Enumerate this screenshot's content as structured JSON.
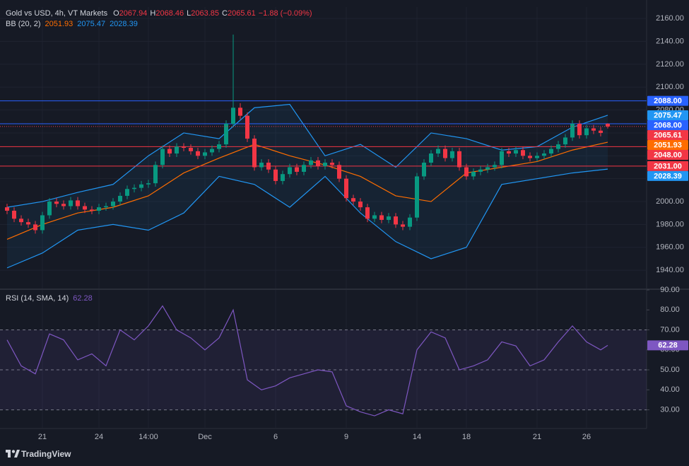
{
  "header": {
    "symbol": "Gold vs USD, 4h, VT Markets",
    "ohlc_keys": [
      "O",
      "H",
      "L",
      "C"
    ],
    "change": "−1.88 (−0.09%)"
  },
  "watermark": "TradingView",
  "chart_data": [
    {
      "type": "candlestick",
      "categories": [
        null,
        null,
        null,
        null,
        null,
        "21",
        null,
        null,
        null,
        null,
        null,
        null,
        null,
        "24",
        null,
        null,
        null,
        null,
        null,
        null,
        "14:00",
        null,
        null,
        null,
        null,
        null,
        null,
        null,
        "Dec",
        null,
        null,
        null,
        null,
        null,
        null,
        null,
        null,
        null,
        "6",
        null,
        null,
        null,
        null,
        null,
        null,
        null,
        null,
        null,
        "9",
        null,
        null,
        null,
        null,
        null,
        null,
        null,
        null,
        null,
        "14",
        null,
        null,
        null,
        null,
        null,
        null,
        "18",
        null,
        null,
        null,
        null,
        null,
        null,
        null,
        null,
        null,
        "21",
        null,
        null,
        null,
        null,
        null,
        null,
        "26",
        null,
        null,
        null
      ],
      "open": [
        1995,
        1992,
        1985,
        1982,
        1980,
        1975,
        1988,
        2000,
        1998,
        1996,
        2001,
        1996,
        1993,
        1992,
        1995,
        1996,
        2000,
        2005,
        2011,
        2012,
        2015,
        2016,
        2032,
        2046,
        2042,
        2048,
        2047,
        2044,
        2040,
        2043,
        2046,
        2050,
        2068,
        2082,
        2075,
        2055,
        2030,
        2034,
        2028,
        2018,
        2024,
        2030,
        2026,
        2032,
        2036,
        2031,
        2034,
        2032,
        2020,
        2003,
        2000,
        1995,
        1985,
        1988,
        1984,
        1987,
        1980,
        1978,
        1986,
        2022,
        2034,
        2042,
        2046,
        2038,
        2044,
        2030,
        2022,
        2026,
        2028,
        2030,
        2032,
        2044,
        2042,
        2045,
        2040,
        2038,
        2040,
        2042,
        2046,
        2050,
        2056,
        2068,
        2058,
        2064,
        2062,
        2067.94
      ],
      "high": [
        1998,
        1995,
        1988,
        1985,
        1983,
        1991,
        2003,
        2003,
        2001,
        2004,
        2004,
        1999,
        1996,
        1998,
        1999,
        2003,
        2008,
        2014,
        2015,
        2018,
        2019,
        2035,
        2049,
        2049,
        2051,
        2051,
        2050,
        2047,
        2046,
        2049,
        2053,
        2071,
        2146,
        2086,
        2078,
        2058,
        2037,
        2037,
        2031,
        2027,
        2033,
        2033,
        2035,
        2039,
        2039,
        2037,
        2037,
        2035,
        2023,
        2006,
        2003,
        1998,
        1991,
        1991,
        1990,
        1990,
        1983,
        1989,
        2025,
        2037,
        2045,
        2049,
        2049,
        2047,
        2047,
        2033,
        2029,
        2031,
        2033,
        2035,
        2047,
        2047,
        2048,
        2048,
        2043,
        2043,
        2045,
        2049,
        2053,
        2059,
        2071,
        2071,
        2067,
        2067,
        2065,
        2068.46
      ],
      "low": [
        1989,
        1982,
        1979,
        1977,
        1972,
        1972,
        1985,
        1995,
        1993,
        1993,
        1993,
        1990,
        1989,
        1989,
        1992,
        1993,
        1997,
        2002,
        2008,
        2009,
        2012,
        2013,
        2029,
        2039,
        2039,
        2044,
        2041,
        2037,
        2037,
        2040,
        2043,
        2047,
        2065,
        2072,
        2052,
        2027,
        2027,
        2025,
        2015,
        2015,
        2021,
        2023,
        2023,
        2029,
        2028,
        2028,
        2029,
        2017,
        2000,
        1997,
        1992,
        1982,
        1982,
        1981,
        1981,
        1977,
        1975,
        1975,
        1983,
        2019,
        2031,
        2039,
        2035,
        2035,
        2027,
        2019,
        2019,
        2023,
        2025,
        2027,
        2029,
        2039,
        2039,
        2037,
        2035,
        2035,
        2037,
        2039,
        2043,
        2047,
        2053,
        2055,
        2055,
        2059,
        2057,
        2063.85
      ],
      "close": [
        1992,
        1985,
        1982,
        1980,
        1975,
        1988,
        2000,
        1998,
        1996,
        2001,
        1996,
        1993,
        1992,
        1995,
        1996,
        2000,
        2005,
        2011,
        2012,
        2015,
        2016,
        2032,
        2046,
        2042,
        2048,
        2047,
        2044,
        2040,
        2043,
        2046,
        2050,
        2068,
        2082,
        2075,
        2055,
        2030,
        2034,
        2028,
        2018,
        2024,
        2030,
        2026,
        2032,
        2036,
        2031,
        2034,
        2032,
        2020,
        2003,
        2000,
        1995,
        1985,
        1988,
        1984,
        1987,
        1980,
        1978,
        1986,
        2022,
        2034,
        2042,
        2046,
        2038,
        2044,
        2030,
        2022,
        2026,
        2028,
        2030,
        2032,
        2044,
        2042,
        2045,
        2040,
        2038,
        2040,
        2042,
        2046,
        2050,
        2056,
        2068,
        2058,
        2064,
        2062,
        2060,
        2065.61
      ],
      "up_color": "#089981",
      "down_color": "#f23645",
      "ylim": [
        1924,
        2170
      ],
      "yticks": [
        {
          "value": 1940,
          "label": "1940.00"
        },
        {
          "value": 1960,
          "label": "1960.00"
        },
        {
          "value": 1980,
          "label": "1980.00"
        },
        {
          "value": 2000,
          "label": "2000.00"
        },
        {
          "value": 2020,
          "label": "2020.00"
        },
        {
          "value": 2040,
          "label": "2040.00"
        },
        {
          "value": 2060,
          "label": "2060.00"
        },
        {
          "value": 2080,
          "label": "2080.00"
        },
        {
          "value": 2100,
          "label": "2100.00"
        },
        {
          "value": 2120,
          "label": "2120.00"
        },
        {
          "value": 2140,
          "label": "2140.00"
        },
        {
          "value": 2160,
          "label": "2160.00"
        }
      ],
      "grid": true,
      "hlines": [
        {
          "value": 2088,
          "label": "2088.00",
          "color": "#2962ff"
        },
        {
          "value": 2068,
          "label": "2068.00",
          "color": "#2962ff"
        },
        {
          "value": 2048,
          "label": "2048.00",
          "color": "#f23645"
        },
        {
          "value": 2031,
          "label": "2031.00",
          "color": "#f23645"
        }
      ],
      "bb": {
        "label": "BB (20, 2)",
        "x": [
          0,
          5,
          10,
          15,
          20,
          25,
          30,
          35,
          40,
          45,
          50,
          55,
          60,
          65,
          70,
          75,
          80,
          85
        ],
        "basis": {
          "color": "#ff6d00",
          "values": [
            1967,
            1980,
            1990,
            1995,
            2005,
            2025,
            2038,
            2050,
            2040,
            2032,
            2022,
            2005,
            2000,
            2025,
            2030,
            2035,
            2045,
            2051.93
          ]
        },
        "upper": {
          "color": "#2196f3",
          "values": [
            1995,
            2000,
            2008,
            2015,
            2040,
            2060,
            2055,
            2082,
            2085,
            2040,
            2050,
            2030,
            2060,
            2055,
            2045,
            2048,
            2065,
            2075.47
          ]
        },
        "lower": {
          "color": "#2196f3",
          "values": [
            1942,
            1955,
            1975,
            1980,
            1975,
            1990,
            2022,
            2015,
            1995,
            2022,
            1990,
            1965,
            1950,
            1960,
            2015,
            2020,
            2025,
            2028.39
          ]
        }
      }
    },
    {
      "type": "line",
      "title": "RSI (14, SMA, 14)",
      "color": "#7e57c2",
      "x": [
        0,
        2,
        4,
        6,
        8,
        10,
        12,
        14,
        16,
        18,
        20,
        22,
        24,
        26,
        28,
        30,
        32,
        34,
        36,
        38,
        40,
        42,
        44,
        46,
        48,
        50,
        52,
        54,
        56,
        58,
        60,
        62,
        64,
        66,
        68,
        70,
        72,
        74,
        76,
        78,
        80,
        82,
        84,
        85
      ],
      "values": [
        65,
        52,
        48,
        68,
        65,
        55,
        58,
        52,
        70,
        65,
        72,
        82,
        70,
        66,
        60,
        66,
        80,
        45,
        40,
        42,
        46,
        48,
        50,
        49,
        32,
        29,
        27,
        30,
        28,
        60,
        69,
        66,
        50,
        52,
        55,
        64,
        62,
        52,
        55,
        64,
        72,
        64,
        60,
        62.28
      ],
      "ylim": [
        21,
        90
      ],
      "yticks": [
        {
          "value": 30,
          "label": "30.00"
        },
        {
          "value": 40,
          "label": "40.00"
        },
        {
          "value": 50,
          "label": "50.00"
        },
        {
          "value": 60,
          "label": "60.00"
        },
        {
          "value": 70,
          "label": "70.00"
        },
        {
          "value": 80,
          "label": "80.00"
        },
        {
          "value": 90,
          "label": "90.00"
        }
      ],
      "levels": [
        70,
        50,
        30
      ]
    }
  ]
}
